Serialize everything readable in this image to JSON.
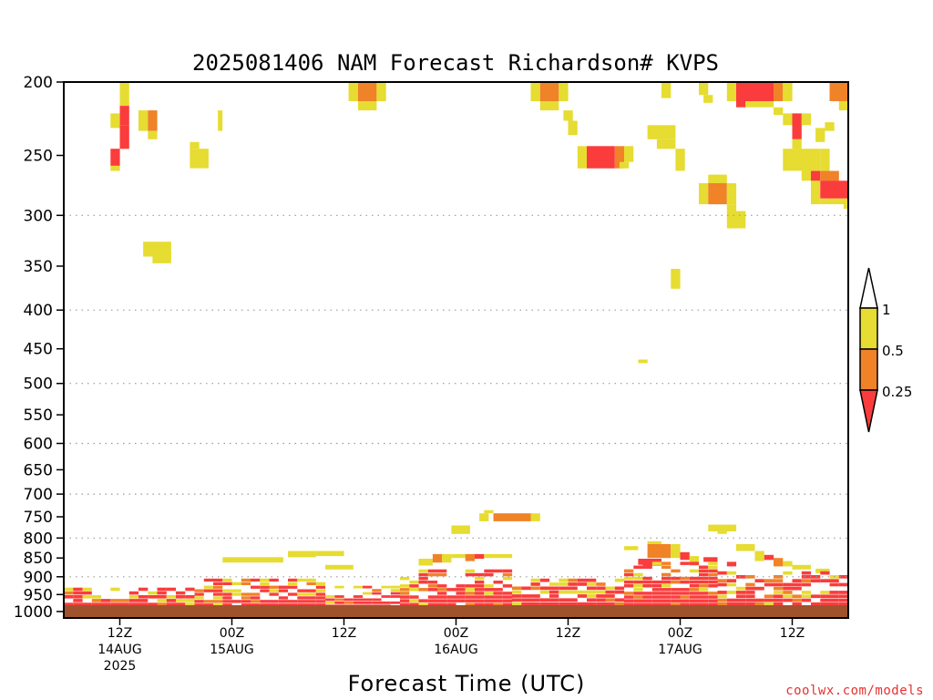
{
  "chart_data": {
    "type": "heatmap",
    "title": "2025081406 NAM Forecast Richardson# KVPS",
    "xlabel": "Forecast Time (UTC)",
    "credit": "coolwx.com/models",
    "y_axis": {
      "scale": "log-pressure",
      "ylim": [
        1020,
        200
      ],
      "ticks": [
        200,
        250,
        300,
        350,
        400,
        450,
        500,
        550,
        600,
        650,
        700,
        750,
        800,
        850,
        900,
        950,
        1000
      ],
      "dotted_gridlines": [
        300,
        400,
        500,
        600,
        700,
        800,
        900
      ]
    },
    "x_axis": {
      "units": "hours since 2025-08-14 06Z",
      "xlim": [
        0,
        84
      ],
      "ticks": [
        {
          "hour": 6,
          "lines": [
            "12Z",
            "14AUG",
            "2025"
          ]
        },
        {
          "hour": 18,
          "lines": [
            "00Z",
            "15AUG"
          ]
        },
        {
          "hour": 30,
          "lines": [
            "12Z"
          ]
        },
        {
          "hour": 42,
          "lines": [
            "00Z",
            "16AUG"
          ]
        },
        {
          "hour": 54,
          "lines": [
            "12Z"
          ]
        },
        {
          "hour": 66,
          "lines": [
            "00Z",
            "17AUG"
          ]
        },
        {
          "hour": 78,
          "lines": [
            "12Z"
          ]
        }
      ]
    },
    "colorbar": {
      "labels": [
        "1",
        "0.5",
        "0.25"
      ],
      "bins": [
        {
          "range": "0.5-1",
          "color": "#e6dc32"
        },
        {
          "range": "0.25-0.5",
          "color": "#f08228"
        },
        {
          "range": "<0.25",
          "color": "#fa3c3c"
        }
      ]
    },
    "colors": {
      "yellow": "#e6dc32",
      "orange": "#f08228",
      "red": "#fa3c3c",
      "ground": "#a0522d"
    },
    "cells": [
      {
        "t": 6,
        "t2": 7,
        "p1": 200,
        "p2": 215,
        "c": "Y"
      },
      {
        "t": 6,
        "t2": 7,
        "p1": 215,
        "p2": 228,
        "c": "R"
      },
      {
        "t": 5,
        "t2": 6,
        "p1": 220,
        "p2": 230,
        "c": "Y"
      },
      {
        "t": 6,
        "t2": 7,
        "p1": 228,
        "p2": 245,
        "c": "R"
      },
      {
        "t": 5,
        "t2": 6,
        "p1": 245,
        "p2": 258,
        "c": "R"
      },
      {
        "t": 5,
        "t2": 6,
        "p1": 258,
        "p2": 262,
        "c": "Y"
      },
      {
        "t": 8,
        "t2": 9,
        "p1": 218,
        "p2": 232,
        "c": "Y"
      },
      {
        "t": 9,
        "t2": 10,
        "p1": 218,
        "p2": 232,
        "c": "O"
      },
      {
        "t": 9,
        "t2": 10,
        "p1": 232,
        "p2": 238,
        "c": "Y"
      },
      {
        "t": 16.5,
        "t2": 17,
        "p1": 218,
        "p2": 232,
        "c": "Y"
      },
      {
        "t": 13.5,
        "t2": 14.5,
        "p1": 240,
        "p2": 245,
        "c": "Y"
      },
      {
        "t": 13.5,
        "t2": 15.5,
        "p1": 245,
        "p2": 260,
        "c": "Y"
      },
      {
        "t": 8.5,
        "t2": 11.5,
        "p1": 325,
        "p2": 340,
        "c": "Y"
      },
      {
        "t": 9.5,
        "t2": 11.5,
        "p1": 340,
        "p2": 347,
        "c": "Y"
      },
      {
        "t": 30.5,
        "t2": 31.5,
        "p1": 200,
        "p2": 212,
        "c": "Y"
      },
      {
        "t": 31.5,
        "t2": 33.5,
        "p1": 200,
        "p2": 212,
        "c": "O"
      },
      {
        "t": 33.5,
        "t2": 34.5,
        "p1": 200,
        "p2": 212,
        "c": "Y"
      },
      {
        "t": 31.5,
        "t2": 33.5,
        "p1": 212,
        "p2": 218,
        "c": "Y"
      },
      {
        "t": 50,
        "t2": 51,
        "p1": 200,
        "p2": 212,
        "c": "Y"
      },
      {
        "t": 51,
        "t2": 53,
        "p1": 200,
        "p2": 212,
        "c": "O"
      },
      {
        "t": 53,
        "t2": 54,
        "p1": 200,
        "p2": 212,
        "c": "Y"
      },
      {
        "t": 51,
        "t2": 53,
        "p1": 212,
        "p2": 218,
        "c": "Y"
      },
      {
        "t": 53.5,
        "t2": 54.5,
        "p1": 218,
        "p2": 225,
        "c": "Y"
      },
      {
        "t": 54,
        "t2": 55,
        "p1": 225,
        "p2": 235,
        "c": "Y"
      },
      {
        "t": 55,
        "t2": 56,
        "p1": 243,
        "p2": 260,
        "c": "Y"
      },
      {
        "t": 56,
        "t2": 59,
        "p1": 243,
        "p2": 260,
        "c": "R"
      },
      {
        "t": 59,
        "t2": 60,
        "p1": 243,
        "p2": 260,
        "c": "O"
      },
      {
        "t": 60,
        "t2": 61,
        "p1": 243,
        "p2": 255,
        "c": "Y"
      },
      {
        "t": 59.5,
        "t2": 60.5,
        "p1": 255,
        "p2": 260,
        "c": "Y"
      },
      {
        "t": 64,
        "t2": 65,
        "p1": 200,
        "p2": 210,
        "c": "Y"
      },
      {
        "t": 62.5,
        "t2": 65.5,
        "p1": 228,
        "p2": 238,
        "c": "Y"
      },
      {
        "t": 63.5,
        "t2": 65.5,
        "p1": 238,
        "p2": 245,
        "c": "Y"
      },
      {
        "t": 65.5,
        "t2": 66.5,
        "p1": 245,
        "p2": 262,
        "c": "Y"
      },
      {
        "t": 68,
        "t2": 69,
        "p1": 200,
        "p2": 208,
        "c": "Y"
      },
      {
        "t": 68.5,
        "t2": 69.5,
        "p1": 208,
        "p2": 213,
        "c": "Y"
      },
      {
        "t": 71,
        "t2": 72,
        "p1": 200,
        "p2": 212,
        "c": "Y"
      },
      {
        "t": 72,
        "t2": 76,
        "p1": 200,
        "p2": 212,
        "c": "R"
      },
      {
        "t": 76,
        "t2": 77,
        "p1": 200,
        "p2": 212,
        "c": "O"
      },
      {
        "t": 77,
        "t2": 78,
        "p1": 200,
        "p2": 212,
        "c": "Y"
      },
      {
        "t": 72,
        "t2": 73,
        "p1": 212,
        "p2": 216,
        "c": "R"
      },
      {
        "t": 73,
        "t2": 76,
        "p1": 212,
        "p2": 216,
        "c": "Y"
      },
      {
        "t": 76,
        "t2": 77,
        "p1": 216,
        "p2": 221,
        "c": "Y"
      },
      {
        "t": 77,
        "t2": 78,
        "p1": 220,
        "p2": 228,
        "c": "Y"
      },
      {
        "t": 78,
        "t2": 79,
        "p1": 220,
        "p2": 238,
        "c": "R"
      },
      {
        "t": 79,
        "t2": 80,
        "p1": 220,
        "p2": 228,
        "c": "Y"
      },
      {
        "t": 82,
        "t2": 84,
        "p1": 200,
        "p2": 212,
        "c": "O"
      },
      {
        "t": 83,
        "t2": 84,
        "p1": 212,
        "p2": 218,
        "c": "Y"
      },
      {
        "t": 81.5,
        "t2": 82.5,
        "p1": 226,
        "p2": 232,
        "c": "Y"
      },
      {
        "t": 80.5,
        "t2": 81.5,
        "p1": 230,
        "p2": 240,
        "c": "Y"
      },
      {
        "t": 84,
        "t2": 84.5,
        "p1": 224,
        "p2": 270,
        "c": "O"
      },
      {
        "t": 78,
        "t2": 79,
        "p1": 238,
        "p2": 245,
        "c": "Y"
      },
      {
        "t": 77,
        "t2": 80,
        "p1": 245,
        "p2": 262,
        "c": "Y"
      },
      {
        "t": 80,
        "t2": 81,
        "p1": 245,
        "p2": 262,
        "c": "Y"
      },
      {
        "t": 81,
        "t2": 82,
        "p1": 245,
        "p2": 262,
        "c": "Y"
      },
      {
        "t": 79,
        "t2": 80,
        "p1": 260,
        "p2": 270,
        "c": "Y"
      },
      {
        "t": 80,
        "t2": 81,
        "p1": 262,
        "p2": 270,
        "c": "R"
      },
      {
        "t": 81,
        "t2": 83,
        "p1": 262,
        "p2": 270,
        "c": "O"
      },
      {
        "t": 80,
        "t2": 81,
        "p1": 270,
        "p2": 290,
        "c": "Y"
      },
      {
        "t": 81,
        "t2": 84,
        "p1": 270,
        "p2": 285,
        "c": "R"
      },
      {
        "t": 84,
        "t2": 84.5,
        "p1": 270,
        "p2": 290,
        "c": "Y"
      },
      {
        "t": 81,
        "t2": 84,
        "p1": 285,
        "p2": 290,
        "c": "Y"
      },
      {
        "t": 83.5,
        "t2": 84.5,
        "p1": 290,
        "p2": 294,
        "c": "Y"
      },
      {
        "t": 69,
        "t2": 71,
        "p1": 265,
        "p2": 272,
        "c": "Y"
      },
      {
        "t": 68,
        "t2": 69,
        "p1": 272,
        "p2": 290,
        "c": "Y"
      },
      {
        "t": 69,
        "t2": 71,
        "p1": 272,
        "p2": 290,
        "c": "O"
      },
      {
        "t": 71,
        "t2": 72,
        "p1": 272,
        "p2": 290,
        "c": "Y"
      },
      {
        "t": 71,
        "t2": 72,
        "p1": 290,
        "p2": 296,
        "c": "Y"
      },
      {
        "t": 71,
        "t2": 73,
        "p1": 296,
        "p2": 312,
        "c": "Y"
      },
      {
        "t": 65,
        "t2": 66,
        "p1": 353,
        "p2": 375,
        "c": "Y"
      },
      {
        "t": 61.5,
        "t2": 62.5,
        "p1": 465,
        "p2": 470,
        "c": "Y"
      },
      {
        "t": 45,
        "t2": 46,
        "p1": 735,
        "p2": 742,
        "c": "Y"
      },
      {
        "t": 46,
        "t2": 50,
        "p1": 742,
        "p2": 760,
        "c": "O"
      },
      {
        "t": 44.5,
        "t2": 45.5,
        "p1": 742,
        "p2": 760,
        "c": "Y"
      },
      {
        "t": 50,
        "t2": 51,
        "p1": 742,
        "p2": 760,
        "c": "Y"
      },
      {
        "t": 41.5,
        "t2": 43.5,
        "p1": 770,
        "p2": 790,
        "c": "Y"
      },
      {
        "t": 69,
        "t2": 72,
        "p1": 768,
        "p2": 784,
        "c": "Y"
      },
      {
        "t": 70,
        "t2": 71,
        "p1": 784,
        "p2": 790,
        "c": "Y"
      },
      {
        "t": 17,
        "t2": 22,
        "p1": 848,
        "p2": 862,
        "c": "Y"
      },
      {
        "t": 22,
        "t2": 23.5,
        "p1": 848,
        "p2": 862,
        "c": "Y"
      },
      {
        "t": 24,
        "t2": 27,
        "p1": 832,
        "p2": 848,
        "c": "Y"
      },
      {
        "t": 27,
        "t2": 30,
        "p1": 832,
        "p2": 845,
        "c": "Y"
      },
      {
        "t": 28,
        "t2": 31,
        "p1": 868,
        "p2": 880,
        "c": "Y"
      },
      {
        "t": 38,
        "t2": 39.5,
        "p1": 852,
        "p2": 870,
        "c": "Y"
      },
      {
        "t": 39.5,
        "t2": 40.5,
        "p1": 840,
        "p2": 862,
        "c": "O"
      },
      {
        "t": 40.5,
        "t2": 41.5,
        "p1": 840,
        "p2": 862,
        "c": "Y"
      },
      {
        "t": 41.5,
        "t2": 43,
        "p1": 840,
        "p2": 850,
        "c": "Y"
      },
      {
        "t": 43,
        "t2": 44,
        "p1": 840,
        "p2": 858,
        "c": "O"
      },
      {
        "t": 44,
        "t2": 45,
        "p1": 840,
        "p2": 852,
        "c": "R"
      },
      {
        "t": 45,
        "t2": 48,
        "p1": 840,
        "p2": 850,
        "c": "Y"
      },
      {
        "t": 60,
        "t2": 61.5,
        "p1": 820,
        "p2": 830,
        "c": "Y"
      },
      {
        "t": 62.5,
        "t2": 64,
        "p1": 808,
        "p2": 815,
        "c": "Y"
      },
      {
        "t": 62.5,
        "t2": 65,
        "p1": 815,
        "p2": 850,
        "c": "O"
      },
      {
        "t": 65,
        "t2": 66,
        "p1": 815,
        "p2": 850,
        "c": "Y"
      },
      {
        "t": 61.5,
        "t2": 62.5,
        "p1": 852,
        "p2": 868,
        "c": "R"
      },
      {
        "t": 62,
        "t2": 64,
        "p1": 852,
        "p2": 870,
        "c": "R"
      },
      {
        "t": 66,
        "t2": 67,
        "p1": 835,
        "p2": 855,
        "c": "R"
      },
      {
        "t": 67,
        "t2": 68,
        "p1": 845,
        "p2": 870,
        "c": "Y"
      },
      {
        "t": 68.5,
        "t2": 70,
        "p1": 848,
        "p2": 860,
        "c": "R"
      },
      {
        "t": 71,
        "t2": 72,
        "p1": 860,
        "p2": 872,
        "c": "R"
      },
      {
        "t": 72,
        "t2": 74,
        "p1": 815,
        "p2": 832,
        "c": "Y"
      },
      {
        "t": 74,
        "t2": 75,
        "p1": 832,
        "p2": 858,
        "c": "Y"
      },
      {
        "t": 75,
        "t2": 76,
        "p1": 842,
        "p2": 855,
        "c": "R"
      },
      {
        "t": 76,
        "t2": 77,
        "p1": 850,
        "p2": 872,
        "c": "O"
      },
      {
        "t": 77,
        "t2": 78,
        "p1": 858,
        "p2": 872,
        "c": "Y"
      },
      {
        "t": 78,
        "t2": 80,
        "p1": 868,
        "p2": 880,
        "c": "Y"
      },
      {
        "t": 80.5,
        "t2": 82,
        "p1": 878,
        "p2": 890,
        "c": "Y"
      },
      {
        "t": 84,
        "t2": 84.5,
        "p1": 852,
        "p2": 862,
        "c": "R"
      }
    ],
    "pbl": {
      "spans": [
        {
          "t": 0,
          "t2": 14,
          "top": 930,
          "rows": 7
        },
        {
          "t": 14,
          "t2": 28,
          "top": 905,
          "rows": 10
        },
        {
          "t": 28,
          "t2": 36,
          "top": 925,
          "rows": 9
        },
        {
          "t": 36,
          "t2": 48,
          "top": 880,
          "rows": 12
        },
        {
          "t": 48,
          "t2": 60,
          "top": 905,
          "rows": 9
        },
        {
          "t": 60,
          "t2": 70,
          "top": 860,
          "rows": 14
        },
        {
          "t": 70,
          "t2": 84.5,
          "top": 885,
          "rows": 11
        }
      ],
      "bottom": 1008,
      "palette": [
        "R",
        "R",
        "R",
        "O",
        "Y",
        "R",
        "W"
      ]
    }
  }
}
